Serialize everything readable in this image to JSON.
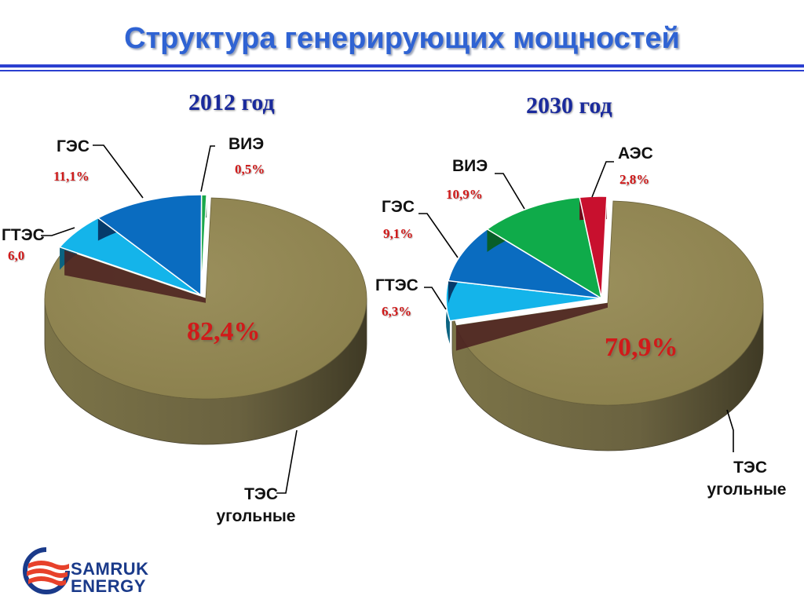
{
  "title": "Структура генерирующих мощностей",
  "chart_data": [
    {
      "type": "pie",
      "title": "2012 год",
      "slices": [
        {
          "name": "ТЭС угольные",
          "value": 82.4,
          "label": "82,4%",
          "color": "#958a55"
        },
        {
          "name": "ГТЭС",
          "value": 6.0,
          "label": "6,0",
          "color": "#14b4ea"
        },
        {
          "name": "ГЭС",
          "value": 11.1,
          "label": "11,1%",
          "color": "#0a6cc0"
        },
        {
          "name": "ВИЭ",
          "value": 0.5,
          "label": "0,5%",
          "color": "#1aa84b"
        }
      ]
    },
    {
      "type": "pie",
      "title": "2030 год",
      "slices": [
        {
          "name": "ТЭС угольные",
          "value": 70.9,
          "label": "70,9%",
          "color": "#958a55"
        },
        {
          "name": "ГТЭС",
          "value": 6.3,
          "label": "6,3%",
          "color": "#14b4ea"
        },
        {
          "name": "ГЭС",
          "value": 9.1,
          "label": "9,1%",
          "color": "#0a6cc0"
        },
        {
          "name": "ВИЭ",
          "value": 10.9,
          "label": "10,9%",
          "color": "#0fab4a"
        },
        {
          "name": "АЭС",
          "value": 2.8,
          "label": "2,8%",
          "color": "#c8102e"
        }
      ]
    }
  ],
  "labels": {
    "tes_line1": "ТЭС",
    "tes_line2": "угольные"
  },
  "logo": {
    "line1": "SAMRUK",
    "line2": "ENERGY",
    "icon": "samruk-logo-icon"
  }
}
